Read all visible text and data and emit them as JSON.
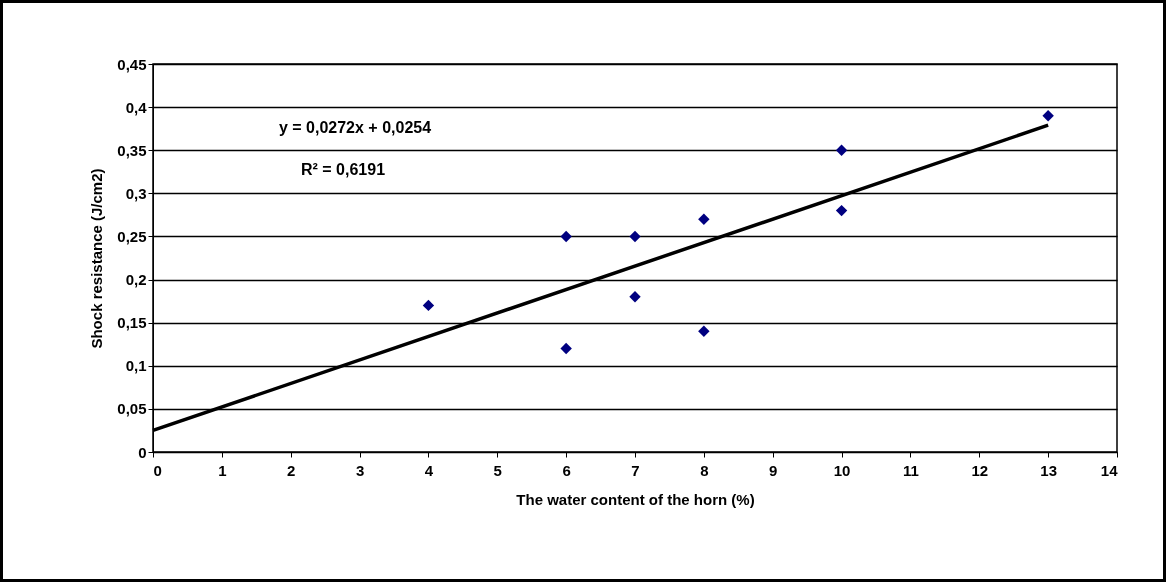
{
  "chart_data": {
    "type": "scatter",
    "xlabel": "The water content of the horn (%)",
    "ylabel": "Shock resistance (J/cm2)",
    "annotations": [
      "y = 0,0272x + 0,0254",
      "R² = 0,6191"
    ],
    "series": [
      {
        "marker": "diamond",
        "color": "#000080",
        "x": [
          4,
          6,
          6,
          7,
          7,
          8,
          8,
          10,
          10,
          13
        ],
        "values": [
          0.17,
          0.25,
          0.12,
          0.25,
          0.18,
          0.27,
          0.14,
          0.35,
          0.28,
          0.39
        ]
      },
      {
        "type": "line",
        "marker": "none",
        "color": "#000000",
        "x": [
          0,
          13
        ],
        "values": [
          0.025,
          0.379
        ]
      }
    ],
    "grid": "y",
    "xlim": [
      0,
      14
    ],
    "xticks": [
      0,
      1,
      2,
      3,
      4,
      5,
      6,
      7,
      8,
      9,
      10,
      11,
      12,
      13,
      14
    ],
    "ylim": [
      0,
      0.45
    ],
    "yticks": [
      0,
      {
        "value": 0.05,
        "label": "0,05"
      },
      {
        "value": 0.1,
        "label": "0,1"
      },
      {
        "value": 0.15,
        "label": "0,15"
      },
      {
        "value": 0.2,
        "label": "0,2"
      },
      {
        "value": 0.25,
        "label": "0,25"
      },
      {
        "value": 0.3,
        "label": "0,3"
      },
      {
        "value": 0.35,
        "label": "0,35"
      },
      {
        "value": 0.4,
        "label": "0,4"
      },
      {
        "value": 0.45,
        "label": "0,45"
      }
    ]
  }
}
